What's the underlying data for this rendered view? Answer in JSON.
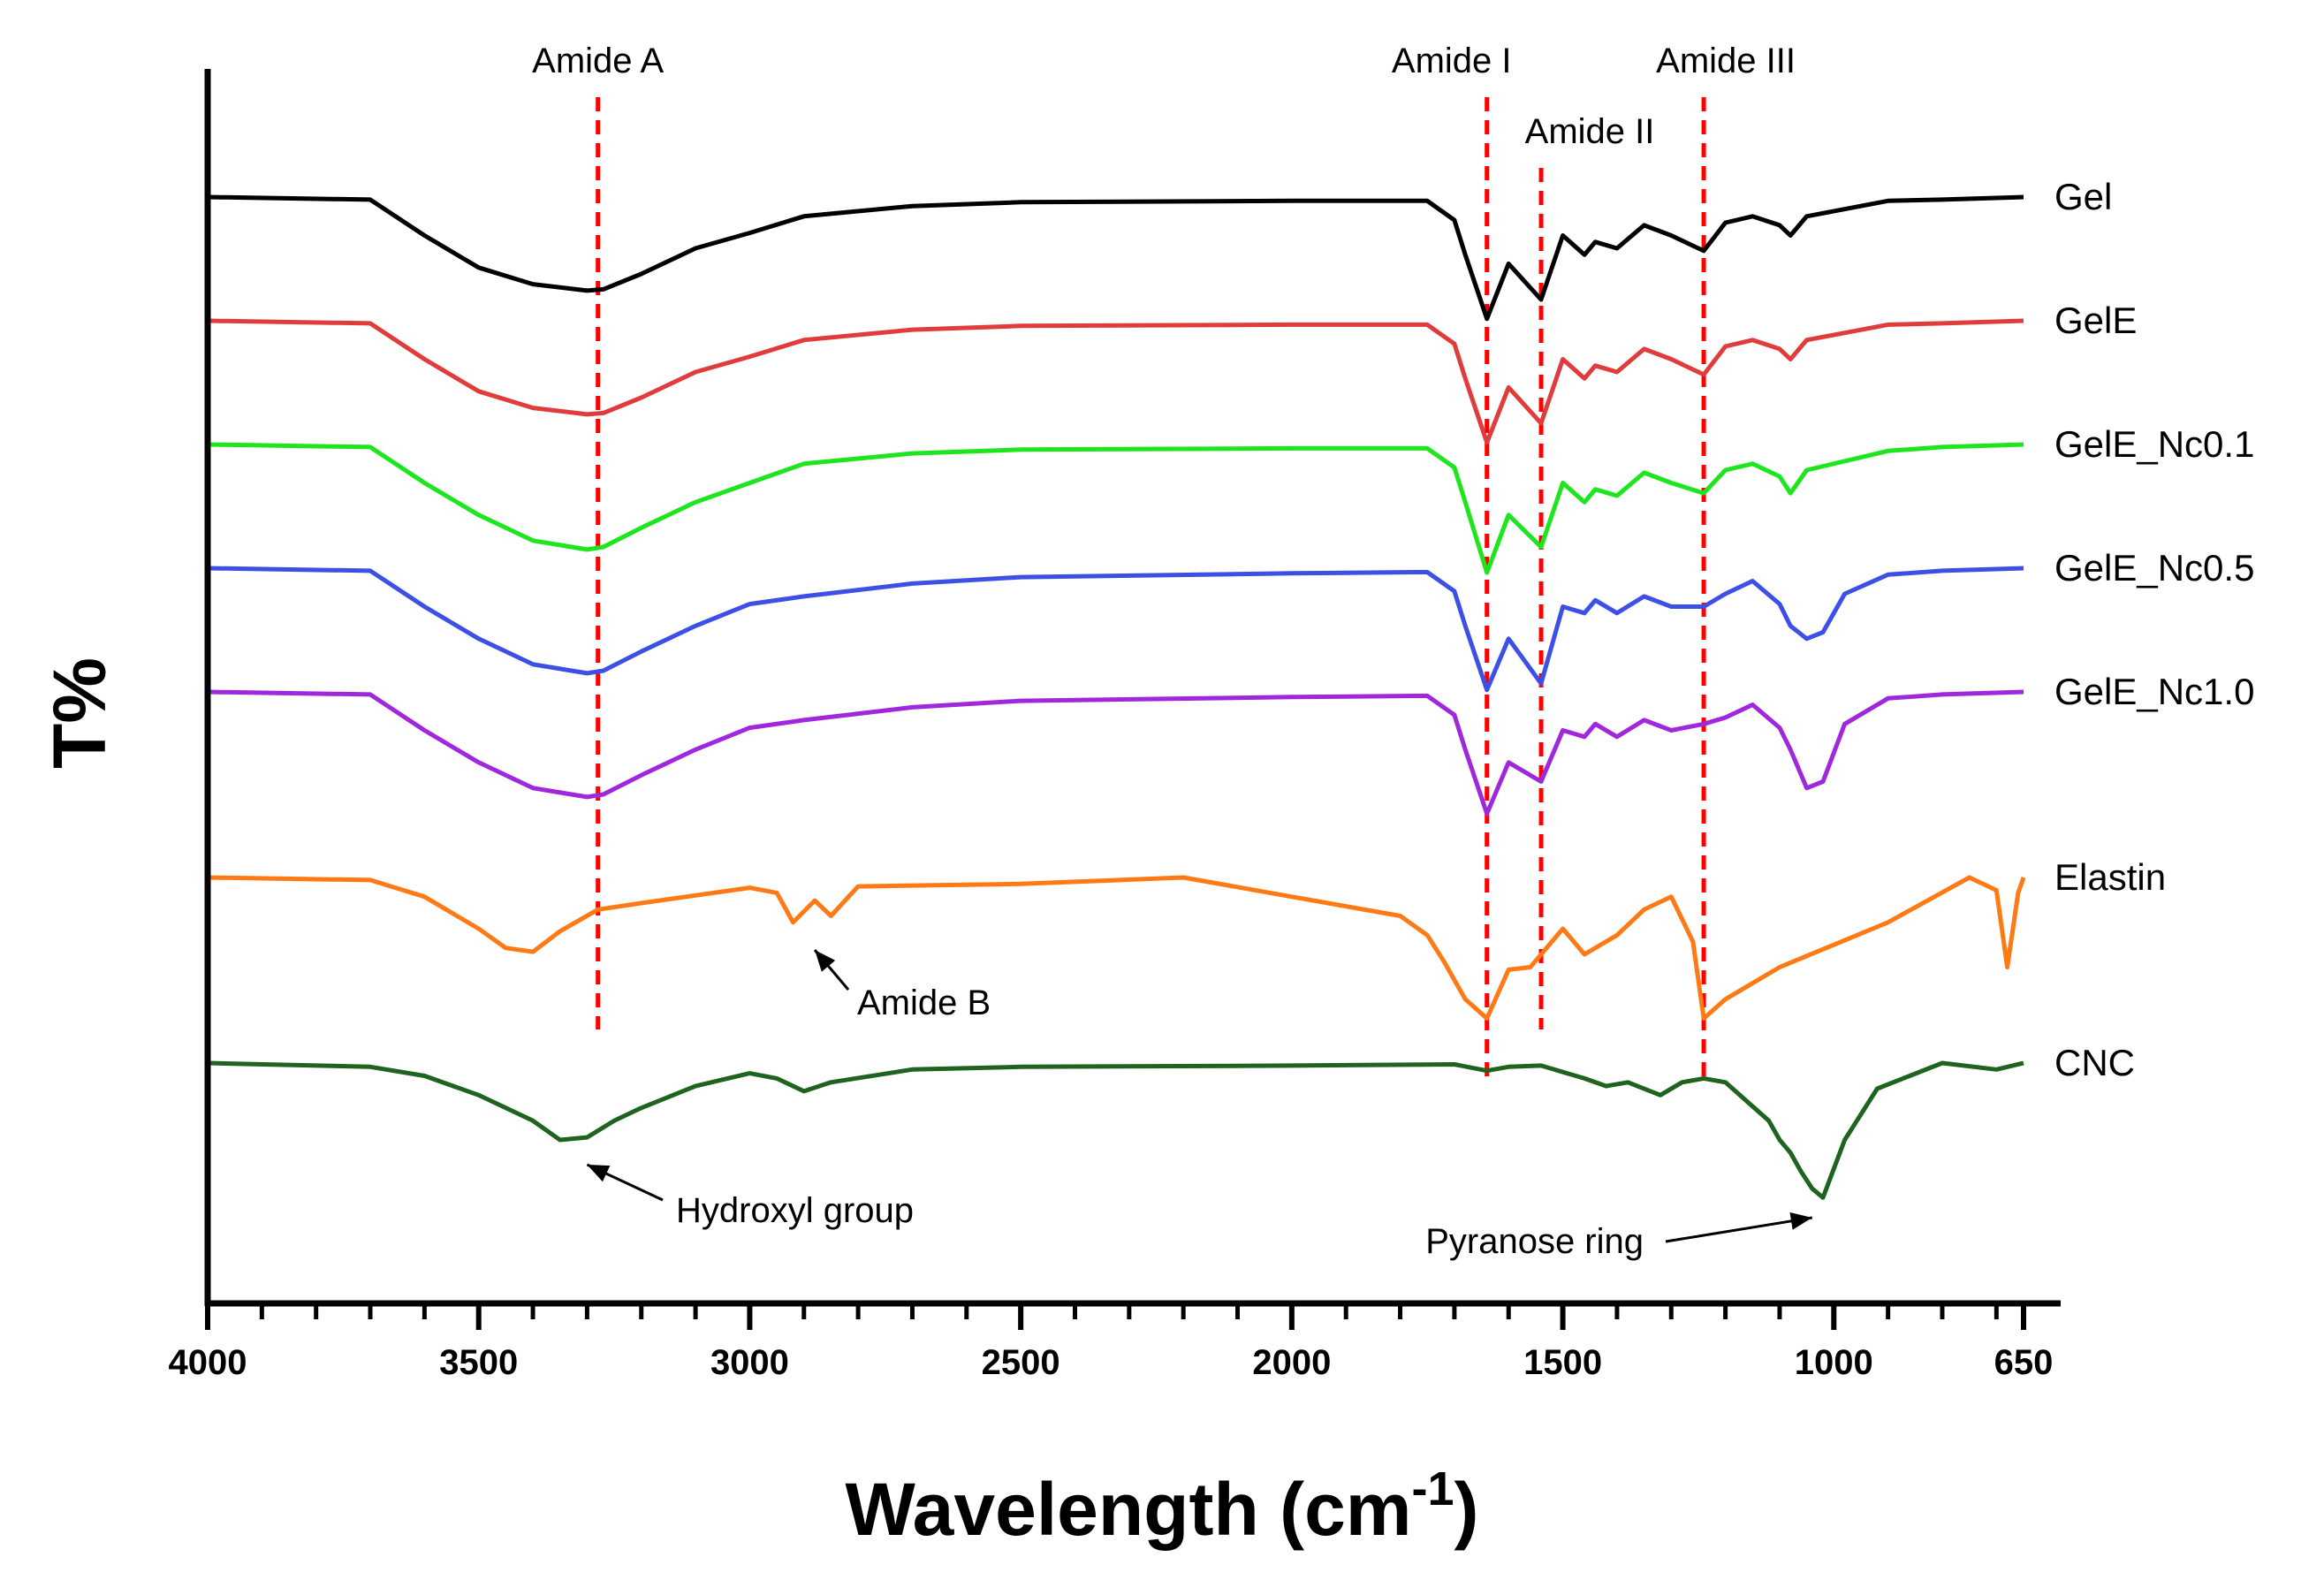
{
  "chart_data": {
    "type": "line",
    "title": "",
    "xlabel_main": "Wavelength (cm",
    "xlabel_sup": "-1",
    "xlabel_close": ")",
    "ylabel": "T%",
    "xlim": [
      4000,
      650
    ],
    "x_ticks": [
      4000,
      3500,
      3000,
      2500,
      2000,
      1500,
      1000,
      650
    ],
    "x_tick_labels": [
      "4000",
      "3500",
      "3000",
      "2500",
      "2000",
      "1500",
      "1000",
      "650"
    ],
    "grid": false,
    "reference_lines": [
      {
        "name": "amide-a-line",
        "x": 3280,
        "label": "Amide A",
        "color": "#ff0000"
      },
      {
        "name": "amide-i-line",
        "x": 1640,
        "label": "Amide I",
        "color": "#ff0000"
      },
      {
        "name": "amide-ii-line",
        "x": 1540,
        "label": "Amide II",
        "color": "#ff0000"
      },
      {
        "name": "amide-iii-line",
        "x": 1240,
        "label": "Amide III",
        "color": "#ff0000"
      }
    ],
    "annotations": [
      {
        "name": "amide-b-annotation",
        "text": "Amide B",
        "x": 2880
      },
      {
        "name": "hydroxyl-annotation",
        "text": "Hydroxyl group",
        "x": 3300
      },
      {
        "name": "pyranose-annotation",
        "text": "Pyranose ring",
        "x": 1040
      }
    ],
    "series": [
      {
        "name": "Gel",
        "color": "#000000",
        "x": [
          4000,
          3700,
          3600,
          3500,
          3400,
          3300,
          3270,
          3200,
          3100,
          3000,
          2900,
          2700,
          2500,
          2000,
          1750,
          1700,
          1680,
          1640,
          1600,
          1540,
          1500,
          1460,
          1440,
          1400,
          1350,
          1300,
          1240,
          1200,
          1150,
          1100,
          1080,
          1050,
          900,
          800,
          650
        ],
        "y": [
          0,
          -2,
          -30,
          -55,
          -68,
          -73,
          -72,
          -60,
          -40,
          -28,
          -15,
          -7,
          -4,
          -3,
          -3,
          -18,
          -45,
          -95,
          -52,
          -80,
          -30,
          -45,
          -35,
          -40,
          -22,
          -30,
          -42,
          -20,
          -15,
          -22,
          -30,
          -15,
          -3,
          -2,
          0
        ]
      },
      {
        "name": "GelE",
        "color": "#e03c3c",
        "x": [
          4000,
          3700,
          3600,
          3500,
          3400,
          3300,
          3270,
          3200,
          3100,
          3000,
          2900,
          2700,
          2500,
          2000,
          1750,
          1700,
          1680,
          1640,
          1600,
          1540,
          1500,
          1460,
          1440,
          1400,
          1350,
          1300,
          1240,
          1200,
          1150,
          1100,
          1080,
          1050,
          900,
          800,
          650
        ],
        "y": [
          0,
          -2,
          -30,
          -55,
          -68,
          -73,
          -72,
          -60,
          -40,
          -28,
          -15,
          -7,
          -4,
          -3,
          -3,
          -18,
          -45,
          -95,
          -52,
          -80,
          -30,
          -45,
          -35,
          -40,
          -22,
          -30,
          -42,
          -20,
          -15,
          -22,
          -30,
          -15,
          -3,
          -2,
          0
        ]
      },
      {
        "name": "GelE_Nc0.1",
        "color": "#1ee61e",
        "x": [
          4000,
          3700,
          3600,
          3500,
          3400,
          3300,
          3270,
          3200,
          3100,
          3000,
          2900,
          2700,
          2500,
          2000,
          1750,
          1700,
          1680,
          1640,
          1600,
          1540,
          1500,
          1460,
          1440,
          1400,
          1350,
          1300,
          1240,
          1200,
          1150,
          1100,
          1080,
          1050,
          900,
          800,
          650
        ],
        "y": [
          0,
          -2,
          -30,
          -55,
          -75,
          -82,
          -80,
          -65,
          -45,
          -30,
          -15,
          -7,
          -4,
          -3,
          -3,
          -18,
          -45,
          -100,
          -55,
          -80,
          -30,
          -45,
          -35,
          -40,
          -22,
          -30,
          -38,
          -20,
          -15,
          -25,
          -38,
          -20,
          -5,
          -2,
          0
        ]
      },
      {
        "name": "GelE_Nc0.5",
        "color": "#3c50e6",
        "x": [
          4000,
          3700,
          3600,
          3500,
          3400,
          3300,
          3270,
          3200,
          3100,
          3000,
          2900,
          2700,
          2500,
          2000,
          1750,
          1700,
          1680,
          1640,
          1600,
          1540,
          1500,
          1460,
          1440,
          1400,
          1350,
          1300,
          1240,
          1200,
          1150,
          1100,
          1080,
          1050,
          1020,
          980,
          900,
          800,
          650
        ],
        "y": [
          0,
          -2,
          -30,
          -55,
          -75,
          -82,
          -80,
          -65,
          -45,
          -28,
          -22,
          -12,
          -7,
          -4,
          -3,
          -18,
          -45,
          -95,
          -55,
          -90,
          -30,
          -35,
          -25,
          -35,
          -22,
          -30,
          -30,
          -20,
          -10,
          -28,
          -45,
          -55,
          -50,
          -20,
          -5,
          -2,
          0
        ]
      },
      {
        "name": "GelE_Nc1.0",
        "color": "#a028dc",
        "x": [
          4000,
          3700,
          3600,
          3500,
          3400,
          3300,
          3270,
          3200,
          3100,
          3000,
          2900,
          2700,
          2500,
          2000,
          1750,
          1700,
          1680,
          1640,
          1600,
          1540,
          1500,
          1460,
          1440,
          1400,
          1350,
          1300,
          1240,
          1200,
          1150,
          1100,
          1080,
          1050,
          1020,
          980,
          900,
          800,
          650
        ],
        "y": [
          0,
          -2,
          -30,
          -55,
          -75,
          -82,
          -80,
          -65,
          -45,
          -28,
          -22,
          -12,
          -7,
          -4,
          -3,
          -18,
          -45,
          -95,
          -55,
          -70,
          -30,
          -35,
          -25,
          -35,
          -22,
          -30,
          -25,
          -20,
          -10,
          -28,
          -45,
          -75,
          -70,
          -25,
          -5,
          -2,
          0
        ]
      },
      {
        "name": "Elastin",
        "color": "#ff7a14",
        "x": [
          4000,
          3700,
          3600,
          3500,
          3450,
          3400,
          3350,
          3280,
          3200,
          3000,
          2950,
          2920,
          2880,
          2850,
          2800,
          2500,
          2200,
          2000,
          1800,
          1750,
          1720,
          1680,
          1640,
          1600,
          1560,
          1500,
          1460,
          1400,
          1350,
          1300,
          1260,
          1240,
          1200,
          1100,
          900,
          750,
          700,
          680,
          660,
          650
        ],
        "y": [
          0,
          -2,
          -15,
          -40,
          -55,
          -58,
          -42,
          -25,
          -20,
          -8,
          -12,
          -35,
          -18,
          -30,
          -7,
          -5,
          0,
          -15,
          -30,
          -45,
          -65,
          -95,
          -110,
          -72,
          -70,
          -40,
          -60,
          -45,
          -25,
          -15,
          -50,
          -110,
          -95,
          -70,
          -35,
          0,
          -10,
          -70,
          -12,
          0
        ]
      },
      {
        "name": "CNC",
        "color": "#1e641e",
        "x": [
          4000,
          3700,
          3600,
          3500,
          3400,
          3350,
          3300,
          3250,
          3200,
          3100,
          3000,
          2950,
          2900,
          2850,
          2700,
          2500,
          2000,
          1700,
          1640,
          1600,
          1540,
          1460,
          1420,
          1380,
          1320,
          1280,
          1240,
          1200,
          1160,
          1120,
          1100,
          1080,
          1060,
          1040,
          1020,
          980,
          920,
          860,
          800,
          700,
          650
        ],
        "y": [
          0,
          -3,
          -10,
          -25,
          -45,
          -60,
          -58,
          -45,
          -35,
          -18,
          -8,
          -12,
          -22,
          -15,
          -5,
          -3,
          -2,
          -1,
          -6,
          -3,
          -2,
          -12,
          -18,
          -15,
          -25,
          -15,
          -12,
          -15,
          -30,
          -45,
          -60,
          -70,
          -85,
          -98,
          -105,
          -60,
          -20,
          -10,
          0,
          -5,
          0
        ]
      }
    ]
  }
}
